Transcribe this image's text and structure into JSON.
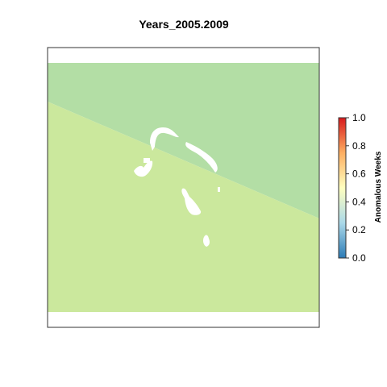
{
  "chart_data": {
    "type": "heatmap",
    "title": "Years_2005.2009",
    "xlabel": "",
    "ylabel": "",
    "grid": false,
    "legend": {
      "title": "Anomalous Weeks",
      "placement": "right",
      "range": [
        0,
        1
      ],
      "ticks": [
        "0.0",
        "0.2",
        "0.4",
        "0.6",
        "0.8",
        "1.0"
      ],
      "palette": [
        "#2c7bb6",
        "#abd9e9",
        "#ffffbf",
        "#fdae61",
        "#d7191c"
      ]
    },
    "regions": [
      {
        "name": "upper-right",
        "value": 0.3,
        "color": "#b3dea5"
      },
      {
        "name": "lower-left",
        "value": 0.35,
        "color": "#cbe89d"
      }
    ],
    "missing_color": "#ffffff"
  }
}
